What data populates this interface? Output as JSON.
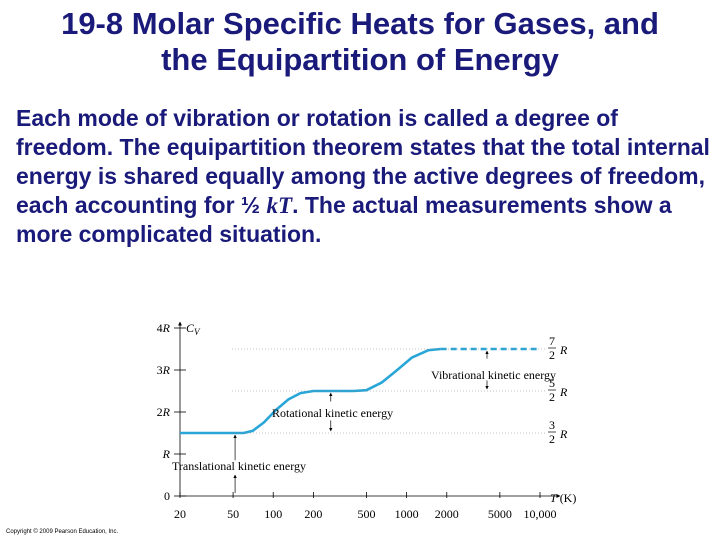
{
  "slide": {
    "title_line1": "19-8 Molar Specific Heats for Gases, and",
    "title_line2": "the Equipartition of Energy",
    "body_part1": "Each mode of vibration or rotation is called a degree of freedom. The equipartition theorem states that the total internal energy is shared equally among the active degrees of freedom, each accounting for ½ ",
    "body_kt": "kT",
    "body_part2": ". The actual measurements show a more complicated situation.",
    "copyright": "Copyright © 2009 Pearson Education, Inc."
  },
  "chart_data": {
    "type": "line",
    "ylabel": "C_V",
    "xlabel": "T (K)",
    "x_scale": "log",
    "xlim": [
      20,
      10000
    ],
    "ylim": [
      0,
      4
    ],
    "y_ticks": [
      {
        "value": 0,
        "label": "0"
      },
      {
        "value": 1,
        "label": "R"
      },
      {
        "value": 2,
        "label": "2R"
      },
      {
        "value": 3,
        "label": "3R"
      },
      {
        "value": 4,
        "label": "4R"
      }
    ],
    "x_ticks": [
      20,
      50,
      100,
      200,
      500,
      1000,
      2000,
      5000,
      10000
    ],
    "x_tick_labels": [
      "20",
      "50",
      "100",
      "200",
      "500",
      "1000",
      "2000",
      "5000",
      "10,000"
    ],
    "level_labels": [
      {
        "value": 3.5,
        "num": "7",
        "den": "2",
        "unit": "R"
      },
      {
        "value": 2.5,
        "num": "5",
        "den": "2",
        "unit": "R"
      },
      {
        "value": 1.5,
        "num": "3",
        "den": "2",
        "unit": "R"
      }
    ],
    "annotations": [
      {
        "text": "Translational kinetic energy",
        "from": 0,
        "to": 1.5
      },
      {
        "text": "Rotational kinetic energy",
        "from": 1.5,
        "to": 2.5
      },
      {
        "text": "Vibrational kinetic energy",
        "from": 2.5,
        "to": 3.5
      }
    ],
    "series": [
      {
        "style": "solid",
        "color": "#29a6d8",
        "points": [
          [
            20,
            1.5
          ],
          [
            60,
            1.5
          ],
          [
            70,
            1.55
          ],
          [
            85,
            1.75
          ],
          [
            105,
            2.05
          ],
          [
            130,
            2.3
          ],
          [
            160,
            2.45
          ],
          [
            200,
            2.5
          ],
          [
            400,
            2.5
          ],
          [
            500,
            2.52
          ],
          [
            650,
            2.7
          ],
          [
            850,
            3.0
          ],
          [
            1100,
            3.3
          ],
          [
            1450,
            3.47
          ],
          [
            1800,
            3.5
          ]
        ]
      },
      {
        "style": "dashed",
        "color": "#29a6d8",
        "points": [
          [
            1800,
            3.5
          ],
          [
            10000,
            3.5
          ]
        ]
      }
    ]
  }
}
